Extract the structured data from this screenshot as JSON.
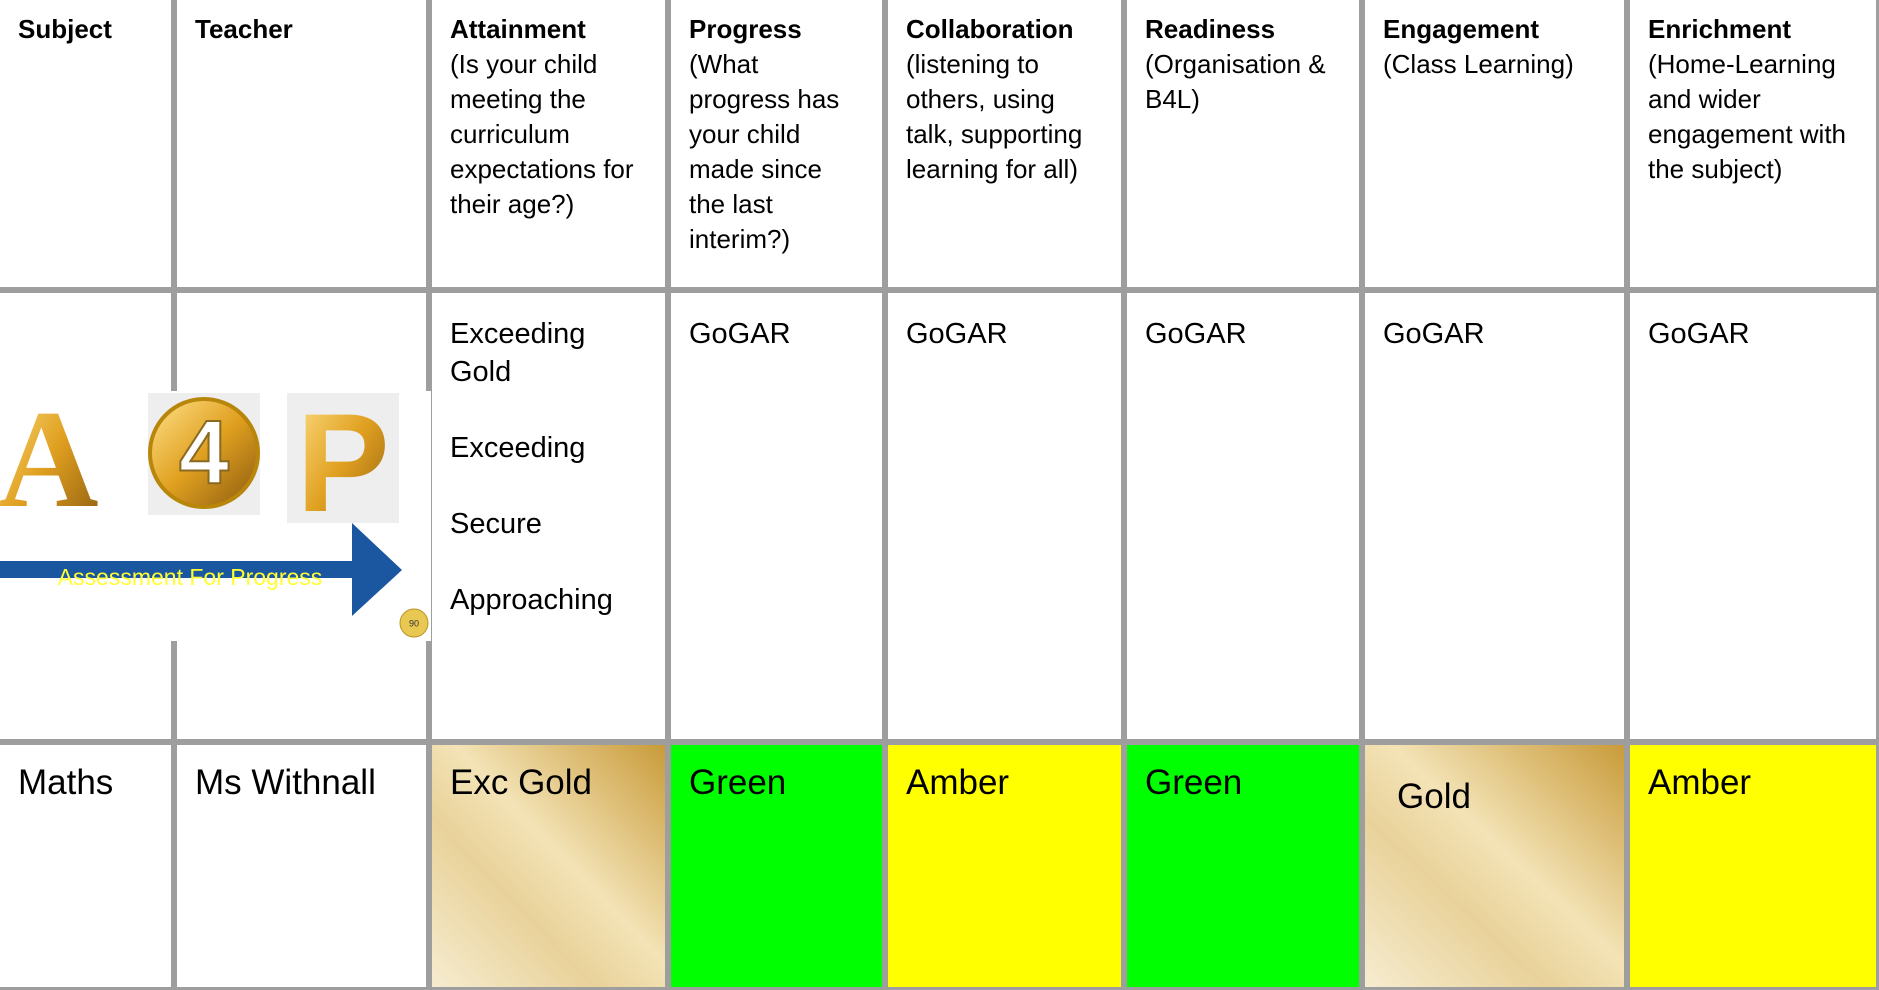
{
  "table": {
    "headers": [
      {
        "title": "Subject"
      },
      {
        "title": "Teacher"
      },
      {
        "title": "Attainment",
        "description": "(Is your child meeting the curriculum expectations for their age?)"
      },
      {
        "title": "Progress",
        "description": "(What progress has your child made since the last interim?)"
      },
      {
        "title": "Collaboration",
        "description": "(listening to others, using talk, supporting learning for all)"
      },
      {
        "title": "Readiness",
        "description": "(Organisation & B4L)"
      },
      {
        "title": "Engagement",
        "description": "(Class Learning)"
      },
      {
        "title": "Enrichment",
        "description": "(Home-Learning and wider engagement with the subject)"
      }
    ],
    "key_row": {
      "attainment_levels": [
        "Exceeding Gold",
        "Exceeding",
        "Secure",
        "Approaching"
      ],
      "scales": [
        "GoGAR",
        "GoGAR",
        "GoGAR",
        "GoGAR",
        "GoGAR"
      ]
    },
    "rows": [
      [
        "Maths",
        "Ms Withnall",
        "Exc Gold",
        "Green",
        "Amber",
        "Green",
        "Gold",
        "Amber"
      ]
    ]
  },
  "logo": {
    "letters": [
      "A",
      "4",
      "P"
    ],
    "caption": "Assessment For Progress",
    "badge": "90"
  }
}
